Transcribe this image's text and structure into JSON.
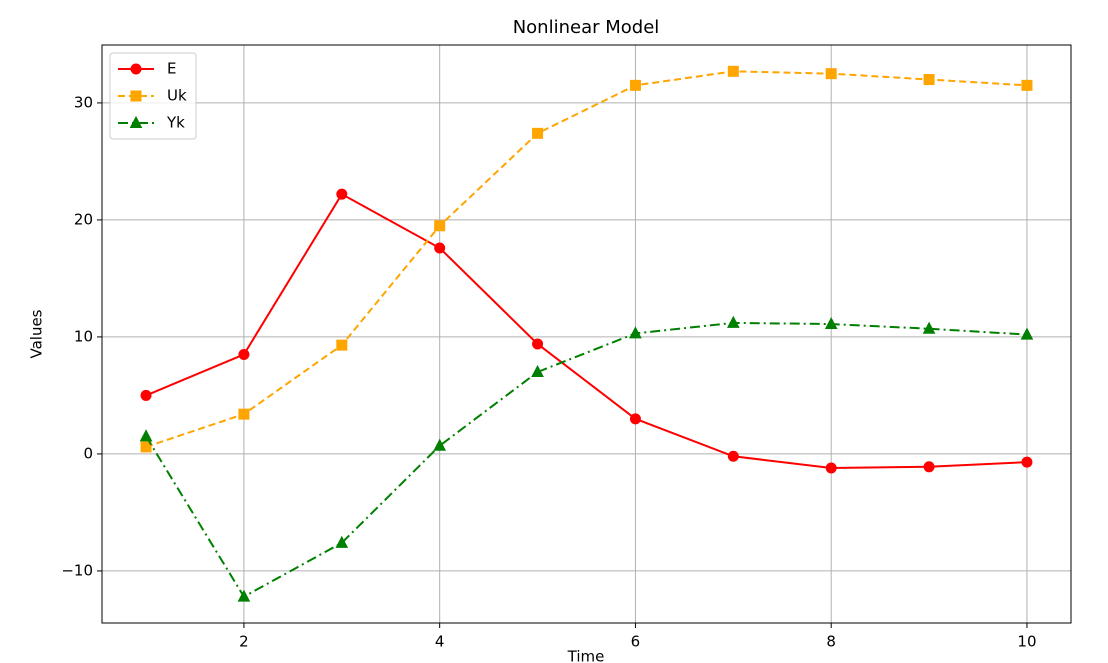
{
  "chart_data": {
    "type": "line",
    "title": "Nonlinear Model",
    "xlabel": "Time",
    "ylabel": "Values",
    "x": [
      1,
      2,
      3,
      4,
      5,
      6,
      7,
      8,
      9,
      10
    ],
    "series": [
      {
        "name": "E",
        "color": "red",
        "marker": "circle",
        "linestyle": "solid",
        "values": [
          5.0,
          8.5,
          22.2,
          17.6,
          9.4,
          3.0,
          -0.2,
          -1.2,
          -1.1,
          -0.7
        ]
      },
      {
        "name": "Uk",
        "color": "orange",
        "marker": "square",
        "linestyle": "dashed",
        "values": [
          0.6,
          3.4,
          9.3,
          19.5,
          27.4,
          31.5,
          32.7,
          32.5,
          32.0,
          31.5
        ]
      },
      {
        "name": "Yk",
        "color": "green",
        "marker": "triangle",
        "linestyle": "dashdot",
        "values": [
          1.5,
          -12.2,
          -7.6,
          0.7,
          7.0,
          10.3,
          11.2,
          11.1,
          10.7,
          10.2
        ]
      }
    ],
    "xlim": [
      0.55,
      10.45
    ],
    "ylim": [
      -14.45,
      34.95
    ],
    "xticks": [
      2,
      4,
      6,
      8,
      10
    ],
    "yticks": [
      {
        "value": -10,
        "label": "−10"
      },
      0,
      10,
      20,
      30
    ],
    "grid": true,
    "legend": "upper left"
  }
}
